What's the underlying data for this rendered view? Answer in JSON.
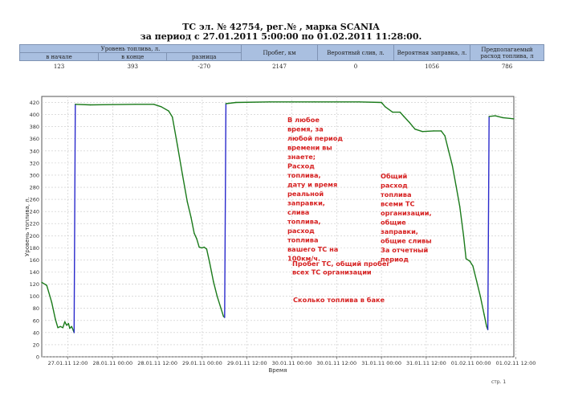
{
  "report": {
    "title_line1": "ТС эл. № 42754, рег.№              , марка   SCANIA",
    "title_line2": "за период с 27.01.2011 5:00:00 по 01.02.2011 11:28:00."
  },
  "summary": {
    "headers": {
      "fuel_level": "Уровень топлива, л.",
      "start": "в начале",
      "end": "в конце",
      "diff": "разница",
      "mileage": "Пробег, км",
      "drain": "Вероятный слив, л.",
      "refuel": "Вероятная заправка, л.",
      "expected_line1": "Предполагаемый",
      "expected_line2": "расход топлива, л"
    },
    "values": {
      "start": "123",
      "end": "393",
      "diff": "-270",
      "mileage": "2147",
      "drain": "0",
      "refuel": "1056",
      "expected": "786"
    }
  },
  "chart_data": {
    "type": "line",
    "title": "",
    "xlabel": "Время",
    "ylabel": "Уровень топлива, л.",
    "ylim": [
      0,
      430
    ],
    "yticks": [
      0,
      20,
      40,
      60,
      80,
      100,
      120,
      140,
      160,
      180,
      200,
      220,
      240,
      260,
      280,
      300,
      320,
      340,
      360,
      380,
      400,
      420
    ],
    "x_range": [
      "27.01.11 05:00",
      "01.02.11 11:28"
    ],
    "xtick_labels": [
      "27.01.11 12:00",
      "28.01.11 00:00",
      "28.01.11 12:00",
      "29.01.11 00:00",
      "29.01.11 12:00",
      "30.01.11 00:00",
      "30.01.11 12:00",
      "31.01.11 00:00",
      "31.01.11 12:00",
      "01.02.11 00:00",
      "01.02.11 12:00"
    ],
    "grid": true,
    "series": [
      {
        "color": "#1a7a1a",
        "points": [
          [
            "27.01.11 05:00",
            123
          ],
          [
            "27.01.11 06:20",
            118
          ],
          [
            "27.01.11 07:40",
            90
          ],
          [
            "27.01.11 08:40",
            62
          ],
          [
            "27.01.11 09:20",
            48
          ],
          [
            "27.01.11 10:00",
            50
          ],
          [
            "27.01.11 10:40",
            48
          ],
          [
            "27.01.11 11:10",
            58
          ],
          [
            "27.01.11 11:40",
            52
          ],
          [
            "27.01.11 12:10",
            55
          ],
          [
            "27.01.11 12:30",
            47
          ],
          [
            "27.01.11 13:00",
            50
          ],
          [
            "27.01.11 13:30",
            43
          ],
          [
            "27.01.11 13:40",
            40
          ],
          [
            "27.01.11 14:00",
            417
          ],
          [
            "27.01.11 18:00",
            416
          ],
          [
            "28.01.11 06:00",
            417
          ],
          [
            "28.01.11 11:00",
            417
          ],
          [
            "28.01.11 13:00",
            413
          ],
          [
            "28.01.11 15:00",
            406
          ],
          [
            "28.01.11 16:00",
            396
          ],
          [
            "28.01.11 17:20",
            350
          ],
          [
            "28.01.11 18:40",
            302
          ],
          [
            "28.01.11 20:00",
            256
          ],
          [
            "28.01.11 21:00",
            230
          ],
          [
            "28.01.11 21:50",
            204
          ],
          [
            "28.01.11 22:30",
            195
          ],
          [
            "28.01.11 23:10",
            181
          ],
          [
            "28.01.11 23:50",
            180
          ],
          [
            "29.01.11 00:30",
            181
          ],
          [
            "29.01.11 01:10",
            178
          ],
          [
            "29.01.11 02:00",
            155
          ],
          [
            "29.01.11 03:00",
            124
          ],
          [
            "29.01.11 04:00",
            100
          ],
          [
            "29.01.11 05:00",
            80
          ],
          [
            "29.01.11 05:40",
            67
          ],
          [
            "29.01.11 06:00",
            65
          ],
          [
            "29.01.11 06:20",
            418
          ],
          [
            "29.01.11 09:00",
            420
          ],
          [
            "29.01.11 18:00",
            421
          ],
          [
            "30.01.11 06:00",
            421
          ],
          [
            "30.01.11 18:00",
            421
          ],
          [
            "31.01.11 00:00",
            420
          ],
          [
            "31.01.11 01:00",
            413
          ],
          [
            "31.01.11 03:00",
            404
          ],
          [
            "31.01.11 05:00",
            404
          ],
          [
            "31.01.11 06:00",
            397
          ],
          [
            "31.01.11 07:30",
            387
          ],
          [
            "31.01.11 09:00",
            376
          ],
          [
            "31.01.11 11:00",
            372
          ],
          [
            "31.01.11 14:00",
            373
          ],
          [
            "31.01.11 16:00",
            373
          ],
          [
            "31.01.11 17:00",
            365
          ],
          [
            "31.01.11 18:00",
            340
          ],
          [
            "31.01.11 19:00",
            316
          ],
          [
            "31.01.11 20:00",
            282
          ],
          [
            "31.01.11 21:00",
            248
          ],
          [
            "31.01.11 22:00",
            200
          ],
          [
            "31.01.11 22:40",
            162
          ],
          [
            "31.01.11 23:40",
            158
          ],
          [
            "01.02.11 00:30",
            150
          ],
          [
            "01.02.11 01:30",
            125
          ],
          [
            "01.02.11 02:30",
            100
          ],
          [
            "01.02.11 03:30",
            70
          ],
          [
            "01.02.11 04:10",
            50
          ],
          [
            "01.02.11 04:30",
            45
          ],
          [
            "01.02.11 04:50",
            397
          ],
          [
            "01.02.11 06:30",
            398
          ],
          [
            "01.02.11 08:30",
            395
          ],
          [
            "01.02.11 11:28",
            393
          ]
        ]
      }
    ],
    "annotations": [
      {
        "text": "В любое время, за любой период времени вы знаете; Расход топлива, дату и время реальной заправки, слива топлива, расход топлива вашего ТС на 100км/ч.",
        "lines": [
          "В любое",
          "время, за",
          "любой период",
          "времени вы",
          "знаете;",
          "Расход",
          "топлива,",
          "дату и время",
          "реальной",
          "заправки,",
          "слива",
          "топлива,",
          "расход",
          "топлива",
          "вашего ТС на",
          "100км/ч."
        ],
        "color": "#d62020"
      },
      {
        "text": "Общий расход топлива всеми ТС организации, общие заправки, общие сливы За отчетный период",
        "lines": [
          "Общий",
          "расход",
          "топлива",
          "всеми ТС",
          "организации,",
          "общие",
          "заправки,",
          "общие сливы",
          "За отчетный",
          "период"
        ],
        "color": "#d62020"
      },
      {
        "text": "Пробег ТС, общий пробег всех ТС организации",
        "lines": [
          "Пробег ТС, общий пробег",
          "всех ТС организации"
        ],
        "color": "#d62020"
      },
      {
        "text": "Сколько топлива в баке",
        "lines": [
          "Сколько топлива в баке"
        ],
        "color": "#d62020"
      }
    ]
  },
  "footer": {
    "page_label": "стр. 1"
  }
}
